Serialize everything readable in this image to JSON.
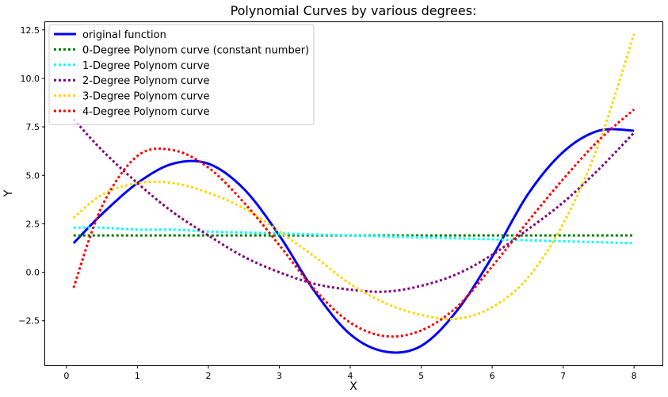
{
  "chart_data": {
    "type": "line",
    "title": "Polynomial Curves by various degrees:",
    "xlabel": "X",
    "ylabel": "Y",
    "xlim": [
      -0.3,
      8.4
    ],
    "ylim": [
      -4.8,
      12.9
    ],
    "xticks": [
      0,
      1,
      2,
      3,
      4,
      5,
      6,
      7,
      8
    ],
    "yticks": [
      -2.5,
      0.0,
      2.5,
      5.0,
      7.5,
      10.0,
      12.5
    ],
    "ytick_labels": [
      "−2.5",
      "0.0",
      "2.5",
      "5.0",
      "7.5",
      "10.0",
      "12.5"
    ],
    "legend_position": "top-left",
    "grid": false,
    "x": [
      0.1,
      0.5,
      1.0,
      1.5,
      2.0,
      2.5,
      3.0,
      3.5,
      4.0,
      4.5,
      5.0,
      5.5,
      6.0,
      6.5,
      7.0,
      7.5,
      8.0
    ],
    "series": [
      {
        "name": "original function",
        "color": "#0000ff",
        "style": "solid",
        "values": [
          1.5,
          3.0,
          4.6,
          5.6,
          5.6,
          4.3,
          1.9,
          -1.0,
          -3.2,
          -4.1,
          -3.8,
          -2.0,
          0.8,
          4.0,
          6.2,
          7.3,
          7.3
        ]
      },
      {
        "name": "0-Degree Polynom curve (constant number)",
        "color": "#008000",
        "style": "dotted",
        "values": [
          1.9,
          1.9,
          1.9,
          1.9,
          1.9,
          1.9,
          1.9,
          1.9,
          1.9,
          1.9,
          1.9,
          1.9,
          1.9,
          1.9,
          1.9,
          1.9,
          1.9
        ]
      },
      {
        "name": "1-Degree Polynom curve",
        "color": "#00ffff",
        "style": "dotted",
        "values": [
          2.3,
          2.3,
          2.2,
          2.2,
          2.1,
          2.05,
          2.0,
          1.95,
          1.9,
          1.85,
          1.8,
          1.75,
          1.7,
          1.65,
          1.6,
          1.55,
          1.5
        ]
      },
      {
        "name": "2-Degree Polynom curve",
        "color": "#800080",
        "style": "dotted",
        "values": [
          7.9,
          6.3,
          4.6,
          3.1,
          1.9,
          0.8,
          0.0,
          -0.6,
          -0.9,
          -1.0,
          -0.7,
          -0.1,
          0.9,
          2.2,
          3.6,
          5.3,
          7.2
        ]
      },
      {
        "name": "3-Degree Polynom curve",
        "color": "#ffd700",
        "style": "dotted",
        "values": [
          2.8,
          4.0,
          4.6,
          4.6,
          4.1,
          3.3,
          2.1,
          0.8,
          -0.6,
          -1.6,
          -2.2,
          -2.4,
          -1.8,
          -0.3,
          2.5,
          6.6,
          12.3
        ]
      },
      {
        "name": "4-Degree Polynom curve",
        "color": "#ff0000",
        "style": "dotted",
        "values": [
          -0.8,
          3.4,
          6.0,
          6.3,
          5.4,
          3.6,
          1.4,
          -0.9,
          -2.6,
          -3.3,
          -3.0,
          -1.8,
          0.3,
          2.6,
          4.8,
          6.8,
          8.4
        ]
      }
    ]
  }
}
